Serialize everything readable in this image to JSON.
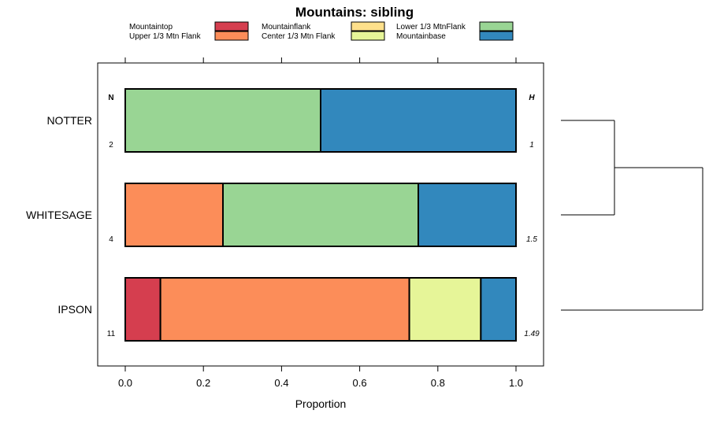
{
  "chart_data": {
    "type": "bar",
    "orientation": "horizontal",
    "stacked": true,
    "title": "Mountains: sibling",
    "xlabel": "Proportion",
    "xlim": [
      -0.07,
      1.07
    ],
    "xticks": [
      "0.0",
      "0.2",
      "0.4",
      "0.6",
      "0.8",
      "1.0"
    ],
    "xtick_values": [
      0,
      0.2,
      0.4,
      0.6,
      0.8,
      1.0
    ],
    "categories": [
      "NOTTER",
      "WHITESAGE",
      "IPSON"
    ],
    "series": [
      {
        "name": "Mountaintop",
        "color": "#d53e4f",
        "values": [
          0,
          0,
          0.09
        ]
      },
      {
        "name": "Upper 1/3 Mtn Flank",
        "color": "#fc8d59",
        "values": [
          0,
          0.25,
          0.637
        ]
      },
      {
        "name": "Mountainflank",
        "color": "#fee08b",
        "values": [
          0,
          0,
          0
        ]
      },
      {
        "name": "Center 1/3 Mtn Flank",
        "color": "#e6f598",
        "values": [
          0,
          0,
          0.183
        ]
      },
      {
        "name": "Lower 1/3 MtnFlank",
        "color": "#99d594",
        "values": [
          0.5,
          0.5,
          0
        ]
      },
      {
        "name": "Mountainbase",
        "color": "#3288bd",
        "values": [
          0.5,
          0.25,
          0.09
        ]
      }
    ],
    "n_header": "N",
    "h_header": "H",
    "n_values": [
      "2",
      "4",
      "11"
    ],
    "h_values": [
      "1",
      "1.5",
      "1.49"
    ],
    "legend_position": "top",
    "dendrogram": true
  }
}
